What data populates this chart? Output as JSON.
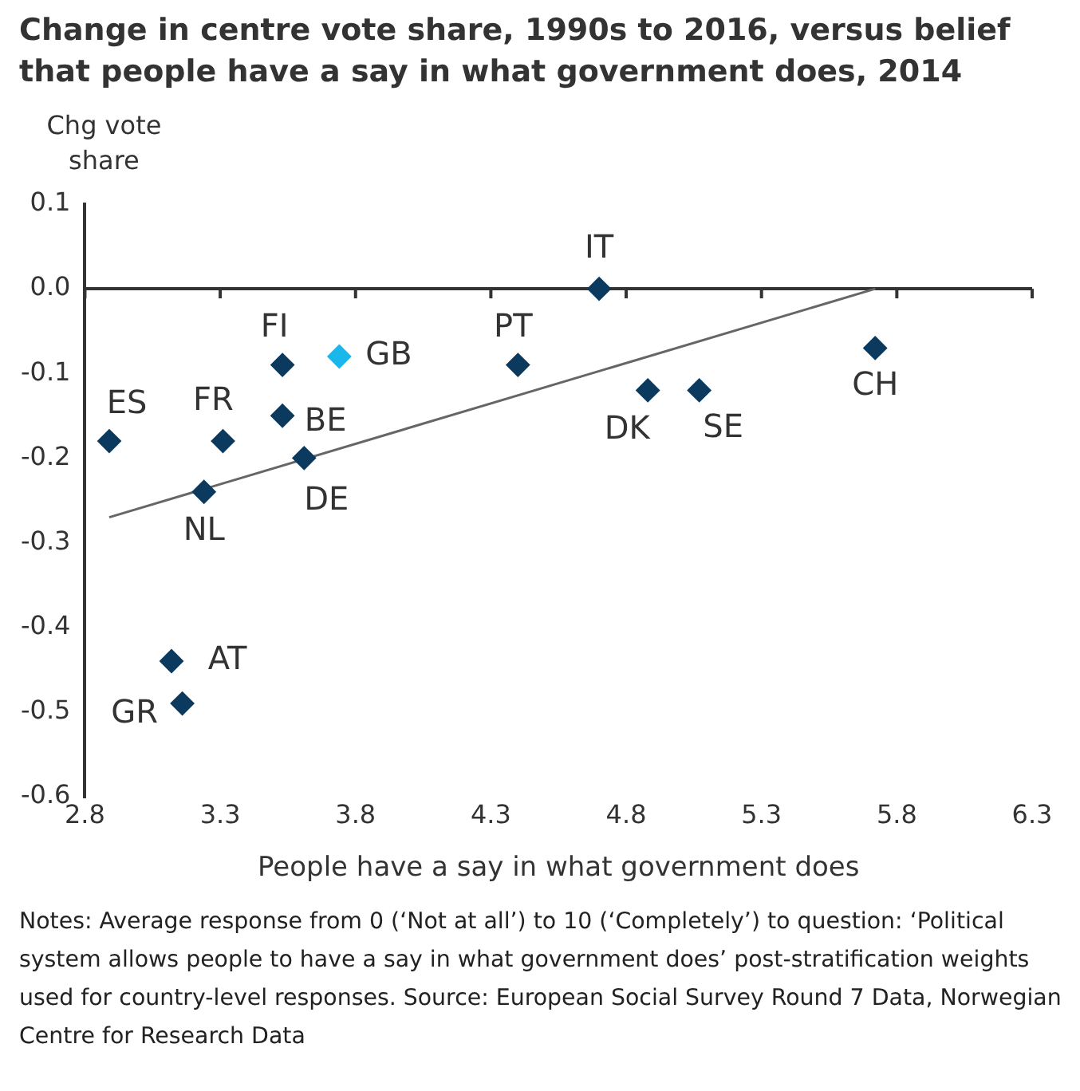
{
  "chart_data": {
    "type": "scatter",
    "title": "Change in centre vote share, 1990s to 2016, versus belief that people have a say in what government does, 2014",
    "xlabel": "People have a say in what government does",
    "ylabel": "Chg vote share",
    "xlim": [
      2.8,
      6.3
    ],
    "xticks": [
      2.8,
      3.3,
      3.8,
      4.3,
      4.8,
      5.3,
      5.8,
      6.3
    ],
    "ylim": [
      -0.6,
      0.1
    ],
    "yticks": [
      0.1,
      {
        "value": 0,
        "label": "0.0"
      },
      -0.1,
      -0.2,
      -0.3,
      -0.4,
      -0.5,
      -0.6
    ],
    "grid": false,
    "legend": false,
    "marker": "diamond",
    "series": [
      {
        "x": [
          2.89,
          3.24,
          3.31,
          3.53,
          3.53,
          3.61,
          3.74,
          3.12,
          3.16,
          4.4,
          4.7,
          4.88,
          5.07,
          5.72
        ],
        "values": [
          -0.18,
          -0.24,
          -0.18,
          -0.09,
          -0.15,
          -0.2,
          -0.08,
          -0.44,
          -0.49,
          -0.09,
          0,
          -0.12,
          -0.12,
          -0.07
        ],
        "colors": [
          "#0b3a5e",
          "#0b3a5e",
          "#0b3a5e",
          "#0b3a5e",
          "#0b3a5e",
          "#0b3a5e",
          "#1ab7ea",
          "#0b3a5e",
          "#0b3a5e",
          "#0b3a5e",
          "#0b3a5e",
          "#0b3a5e",
          "#0b3a5e",
          "#0b3a5e"
        ]
      },
      {
        "type": "line",
        "x": [
          2.89,
          5.72
        ],
        "values": [
          -0.27,
          0
        ],
        "color": "#666666",
        "marker": "none"
      }
    ],
    "ref_lines": [
      {
        "axis": "y",
        "value": 0,
        "color": "#333333"
      }
    ],
    "annotations": [
      {
        "text": "ES",
        "x": 2.89,
        "y": -0.18
      },
      {
        "text": "NL",
        "x": 3.24,
        "y": -0.24
      },
      {
        "text": "FR",
        "x": 3.31,
        "y": -0.18
      },
      {
        "text": "FI",
        "x": 3.53,
        "y": -0.09
      },
      {
        "text": "BE",
        "x": 3.53,
        "y": -0.15
      },
      {
        "text": "DE",
        "x": 3.61,
        "y": -0.2
      },
      {
        "text": "GB",
        "x": 3.74,
        "y": -0.08
      },
      {
        "text": "AT",
        "x": 3.12,
        "y": -0.44
      },
      {
        "text": "GR",
        "x": 3.16,
        "y": -0.49
      },
      {
        "text": "PT",
        "x": 4.4,
        "y": -0.09
      },
      {
        "text": "IT",
        "x": 4.7,
        "y": 0
      },
      {
        "text": "DK",
        "x": 4.88,
        "y": -0.12
      },
      {
        "text": "SE",
        "x": 5.07,
        "y": -0.12
      },
      {
        "text": "CH",
        "x": 5.72,
        "y": -0.07
      },
      "Notes: Average response from 0 (‘Not at all’) to 10 (‘Completely’) to question: ‘Political system allows people to have a say in what government does’ post-stratification weights used for country-level responses. Source: European Social Survey Round 7 Data, Norwegian Centre for Research Data"
    ]
  }
}
